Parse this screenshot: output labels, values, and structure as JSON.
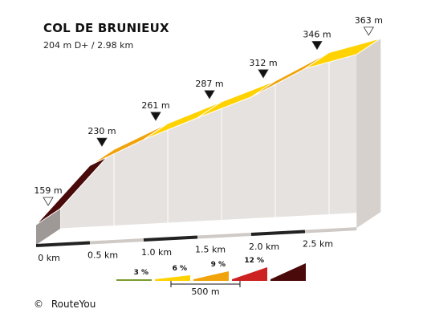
{
  "chart_data": {
    "type": "area",
    "title": "COL DE BRUNIEUX",
    "subtitle": "204 m D+ / 2.98 km",
    "points": [
      {
        "km": 0.0,
        "elevation": 159,
        "label": "159 m"
      },
      {
        "km": 0.5,
        "elevation": 230,
        "label": "230 m"
      },
      {
        "km": 1.0,
        "elevation": 261,
        "label": "261 m"
      },
      {
        "km": 1.5,
        "elevation": 287,
        "label": "287 m"
      },
      {
        "km": 2.0,
        "elevation": 312,
        "label": "312 m"
      },
      {
        "km": 2.5,
        "elevation": 346,
        "label": "346 m"
      },
      {
        "km": 2.98,
        "elevation": 363,
        "label": "363 m"
      }
    ],
    "x_ticks": [
      {
        "km": 0,
        "label": "0 km"
      },
      {
        "km": 0.5,
        "label": "0.5 km"
      },
      {
        "km": 1.0,
        "label": "1.0 km"
      },
      {
        "km": 1.5,
        "label": "1.5 km"
      },
      {
        "km": 2.0,
        "label": "2.0 km"
      },
      {
        "km": 2.5,
        "label": "2.5 km"
      }
    ],
    "segment_colors": [
      "#4a0a0a",
      "#f0a30a",
      "#ffd200",
      "#ffd200",
      "#f0a30a",
      "#ffd200"
    ],
    "legend": {
      "grades": [
        {
          "label": "3 %",
          "color": "#7a9a2e"
        },
        {
          "label": "6 %",
          "color": "#ffd200"
        },
        {
          "label": "9 %",
          "color": "#f0a30a"
        },
        {
          "label": "12 %",
          "color": "#cc2222"
        },
        {
          "label": "",
          "color": "#4a0a0a"
        }
      ],
      "scale_label": "500 m"
    }
  },
  "credit": {
    "symbol": "©",
    "text": "RouteYou"
  }
}
